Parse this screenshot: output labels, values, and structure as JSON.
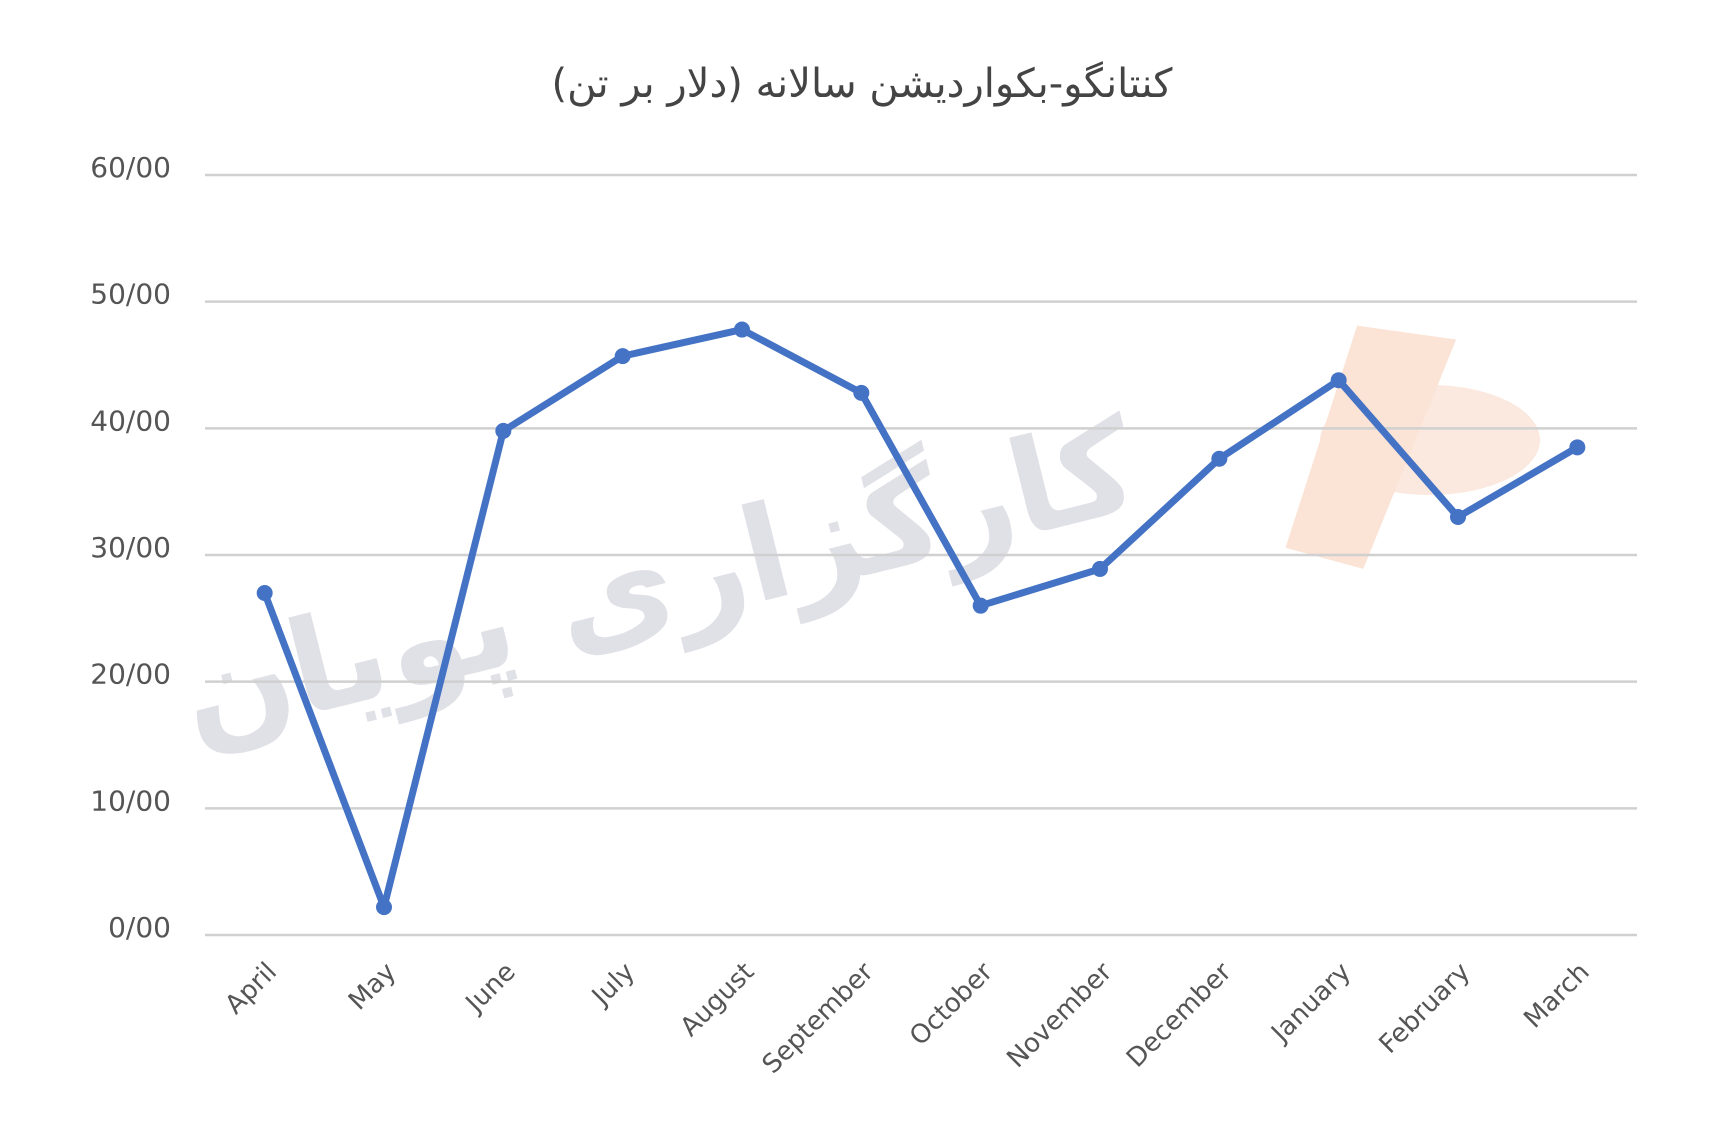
{
  "chart_data": {
    "type": "line",
    "title": "کنتانگو-بکواردیشن سالانه (دلار بر تن)",
    "watermark": "کارگزاری پویان",
    "categories": [
      "April",
      "May",
      "June",
      "July",
      "August",
      "September",
      "October",
      "November",
      "December",
      "January",
      "February",
      "March"
    ],
    "series": [
      {
        "color": "#4472c4",
        "values": [
          27.0,
          2.2,
          39.8,
          45.7,
          47.8,
          42.8,
          26.0,
          28.9,
          37.6,
          43.8,
          33.0,
          38.5
        ]
      }
    ],
    "ylim": [
      0,
      60
    ],
    "yticks": [
      {
        "value": 0,
        "label": "0/00"
      },
      {
        "value": 10,
        "label": "10/00"
      },
      {
        "value": 20,
        "label": "20/00"
      },
      {
        "value": 30,
        "label": "30/00"
      },
      {
        "value": 40,
        "label": "40/00"
      },
      {
        "value": 50,
        "label": "50/00"
      },
      {
        "value": 60,
        "label": "60/00"
      }
    ],
    "grid": true
  }
}
